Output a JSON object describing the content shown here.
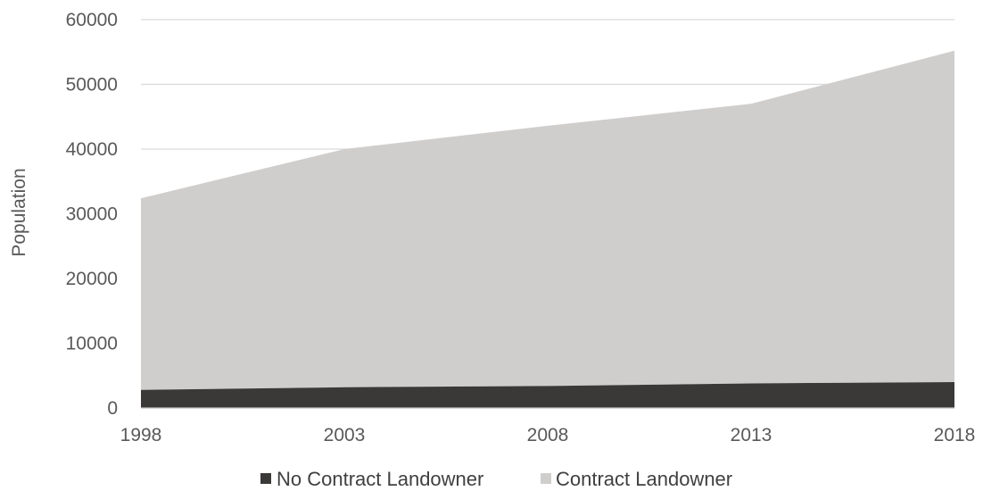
{
  "chart_data": {
    "type": "area",
    "stacked": true,
    "x": [
      "1998",
      "2003",
      "2008",
      "2013",
      "2018"
    ],
    "series": [
      {
        "name": "No Contract Landowner",
        "values": [
          2800,
          3200,
          3400,
          3800,
          4000
        ],
        "color": "#3b3838"
      },
      {
        "name": "Contract Landowner",
        "values": [
          29600,
          36800,
          40200,
          43200,
          51200
        ],
        "color": "#d0cecd"
      }
    ],
    "ylabel": "Population",
    "xlabel": "",
    "ylim": [
      0,
      60000
    ],
    "yticks": [
      "0",
      "10000",
      "20000",
      "30000",
      "40000",
      "50000",
      "60000"
    ],
    "grid": true,
    "gridline_color": "#d9d9d9",
    "legend_position": "bottom"
  }
}
